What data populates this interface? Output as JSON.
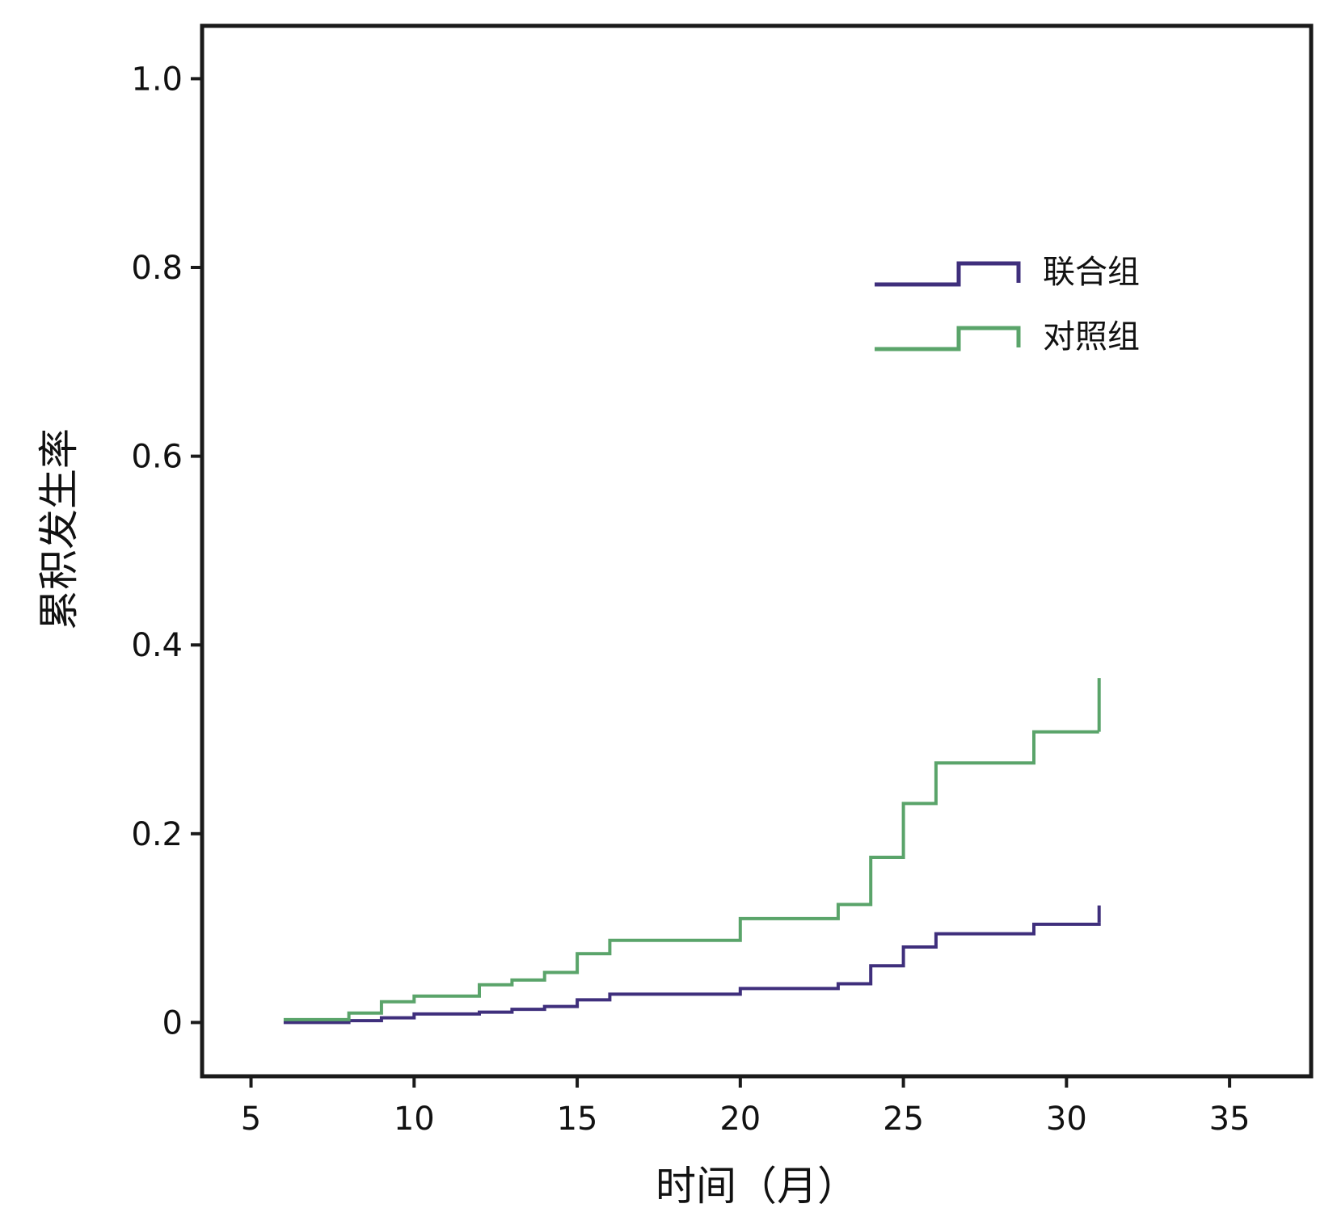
{
  "chart_data": {
    "type": "line",
    "step": true,
    "title": "",
    "xlabel": "时间（月）",
    "ylabel": "累积发生率",
    "xlim": [
      3.5,
      37.5
    ],
    "ylim": [
      -0.057,
      1.056
    ],
    "x_ticks": [
      5,
      10,
      15,
      20,
      25,
      30,
      35
    ],
    "x_tick_labels": [
      "5",
      "10",
      "15",
      "20",
      "25",
      "30",
      "35"
    ],
    "y_ticks": [
      0,
      0.2,
      0.4,
      0.6,
      0.8,
      1.0
    ],
    "y_tick_labels": [
      "0",
      "0.2",
      "0.4",
      "0.6",
      "0.8",
      "1.0"
    ],
    "grid": false,
    "legend_position": "top-right",
    "series": [
      {
        "name": "联合组",
        "color": "#3f2f7c",
        "x": [
          6,
          8,
          9,
          10,
          12,
          13,
          14,
          15,
          16,
          20,
          23,
          24,
          25,
          26,
          29,
          31
        ],
        "y": [
          0,
          0.002,
          0.005,
          0.009,
          0.011,
          0.014,
          0.017,
          0.024,
          0.03,
          0.036,
          0.041,
          0.06,
          0.08,
          0.094,
          0.104,
          0.106
        ],
        "censor_end": 0.124
      },
      {
        "name": "对照组",
        "color": "#5aa46a",
        "x": [
          6,
          8,
          9,
          10,
          12,
          13,
          14,
          15,
          16,
          20,
          23,
          24,
          25,
          26,
          29,
          31
        ],
        "y": [
          0.003,
          0.01,
          0.022,
          0.028,
          0.04,
          0.045,
          0.053,
          0.073,
          0.087,
          0.11,
          0.125,
          0.175,
          0.232,
          0.275,
          0.308,
          0.308
        ],
        "censor_end": 0.365
      }
    ]
  }
}
